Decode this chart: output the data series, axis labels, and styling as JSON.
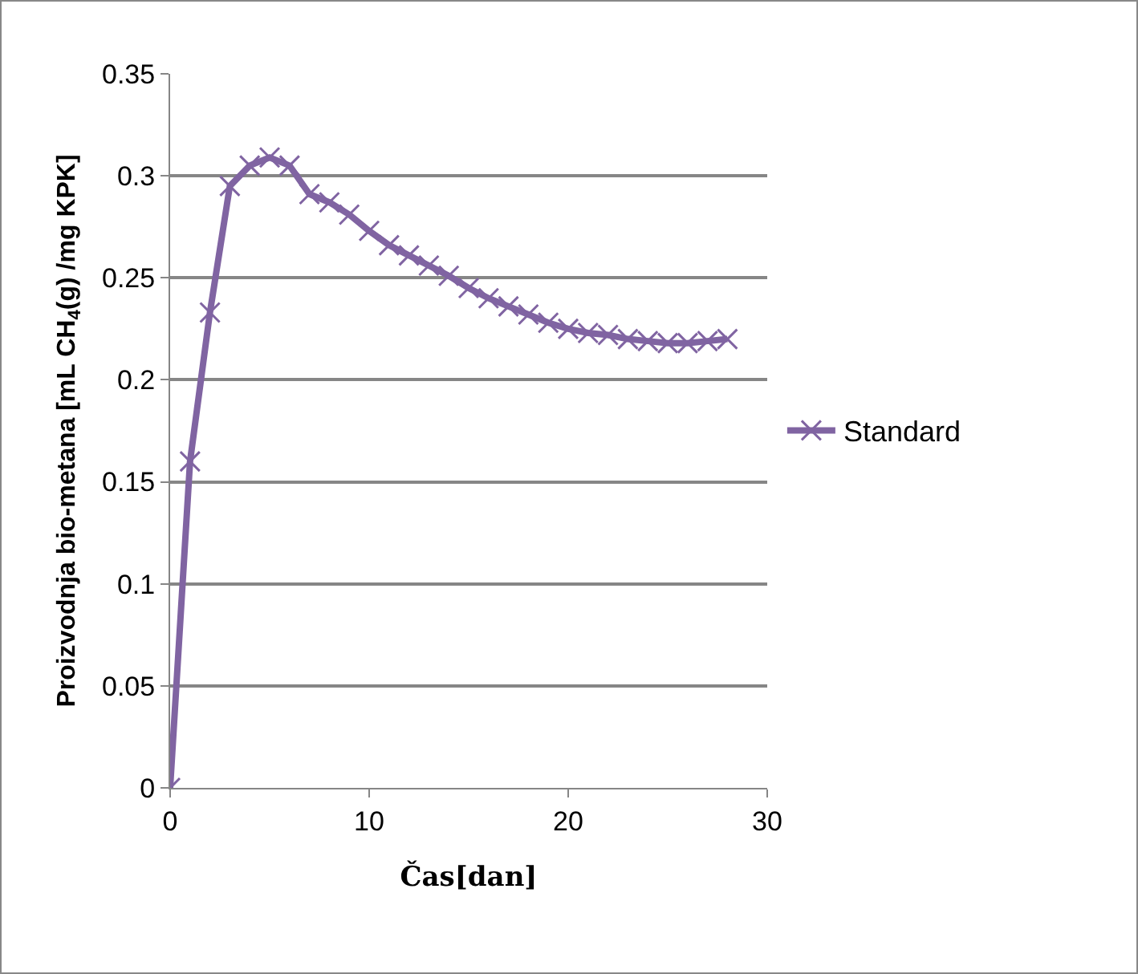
{
  "chart_data": {
    "type": "line",
    "xlabel": "Čas[dan]",
    "ylabel": "Proizvodnja bio-metana [mL CH$_{4}$(g) /mg KPK]",
    "x": [
      0,
      1,
      2,
      3,
      4,
      5,
      6,
      7,
      8,
      9,
      10,
      11,
      12,
      13,
      14,
      15,
      16,
      17,
      18,
      19,
      20,
      21,
      22,
      23,
      24,
      25,
      26,
      27,
      28
    ],
    "series": [
      {
        "name": "Standard",
        "color": "#8064a2",
        "values": [
          0,
          0.16,
          0.233,
          0.295,
          0.305,
          0.309,
          0.305,
          0.291,
          0.287,
          0.281,
          0.273,
          0.266,
          0.261,
          0.256,
          0.251,
          0.245,
          0.24,
          0.236,
          0.232,
          0.228,
          0.225,
          0.223,
          0.222,
          0.22,
          0.219,
          0.218,
          0.218,
          0.219,
          0.22
        ]
      }
    ],
    "xlim": [
      0,
      30
    ],
    "xticks": [
      0,
      10,
      20,
      30
    ],
    "ylim": [
      0,
      0.35
    ],
    "yticks": [
      0,
      0.05,
      0.1,
      0.15,
      0.2,
      0.25,
      0.3,
      0.35
    ],
    "grid": "y",
    "legend": "right",
    "marker": "cross",
    "line_style": "solid"
  }
}
